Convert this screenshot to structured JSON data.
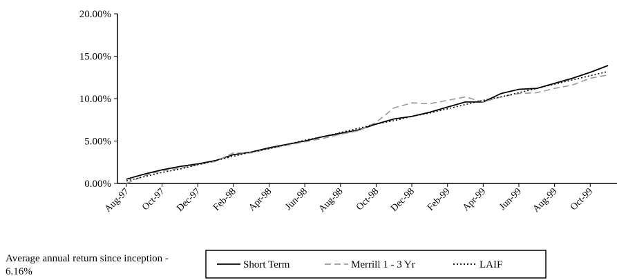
{
  "chart_data": {
    "type": "line",
    "categories": [
      "Aug-97",
      null,
      "Oct-97",
      null,
      "Dec-97",
      null,
      "Feb-98",
      null,
      "Apr-98",
      null,
      "Jun-98",
      null,
      "Aug-98",
      null,
      "Oct-98",
      null,
      "Dec-98",
      null,
      "Feb-99",
      null,
      "Apr-99",
      null,
      "Jun-99",
      null,
      "Aug-99",
      null,
      "Oct-99",
      null
    ],
    "series": [
      {
        "name": "Short Term",
        "color": "#000000",
        "style": "solid",
        "values": [
          0.5,
          1.1,
          1.6,
          2.0,
          2.3,
          2.7,
          3.4,
          3.7,
          4.2,
          4.6,
          5.0,
          5.5,
          5.9,
          6.3,
          7.0,
          7.6,
          7.9,
          8.4,
          9.0,
          9.6,
          9.6,
          10.6,
          11.1,
          11.2,
          11.8,
          12.4,
          13.1,
          13.9
        ]
      },
      {
        "name": "Merrill 1 - 3 Yr",
        "color": "#999999",
        "style": "dashed",
        "values": [
          0.0,
          0.9,
          1.5,
          1.8,
          2.2,
          2.6,
          3.6,
          3.6,
          4.1,
          4.5,
          4.9,
          5.3,
          5.8,
          6.2,
          7.2,
          8.9,
          9.5,
          9.4,
          9.8,
          10.2,
          9.6,
          10.2,
          10.6,
          10.7,
          11.2,
          11.6,
          12.4,
          12.8
        ]
      },
      {
        "name": "LAIF",
        "color": "#000000",
        "style": "dotted",
        "values": [
          0.3,
          0.8,
          1.3,
          1.7,
          2.2,
          2.7,
          3.2,
          3.7,
          4.1,
          4.6,
          5.1,
          5.5,
          6.0,
          6.5,
          7.0,
          7.4,
          7.9,
          8.3,
          8.8,
          9.3,
          9.8,
          10.2,
          10.7,
          11.2,
          11.7,
          12.2,
          12.7,
          13.2
        ]
      }
    ],
    "ylim": [
      0,
      20
    ],
    "yticks": [
      {
        "value": 0,
        "label": "0.00%"
      },
      {
        "value": 5,
        "label": "5.00%"
      },
      {
        "value": 10,
        "label": "10.00%"
      },
      {
        "value": 15,
        "label": "15.00%"
      },
      {
        "value": 20,
        "label": "20.00%"
      }
    ],
    "grid": false,
    "legend": "bottom",
    "note": "Average annual return since inception - 6.16%"
  }
}
